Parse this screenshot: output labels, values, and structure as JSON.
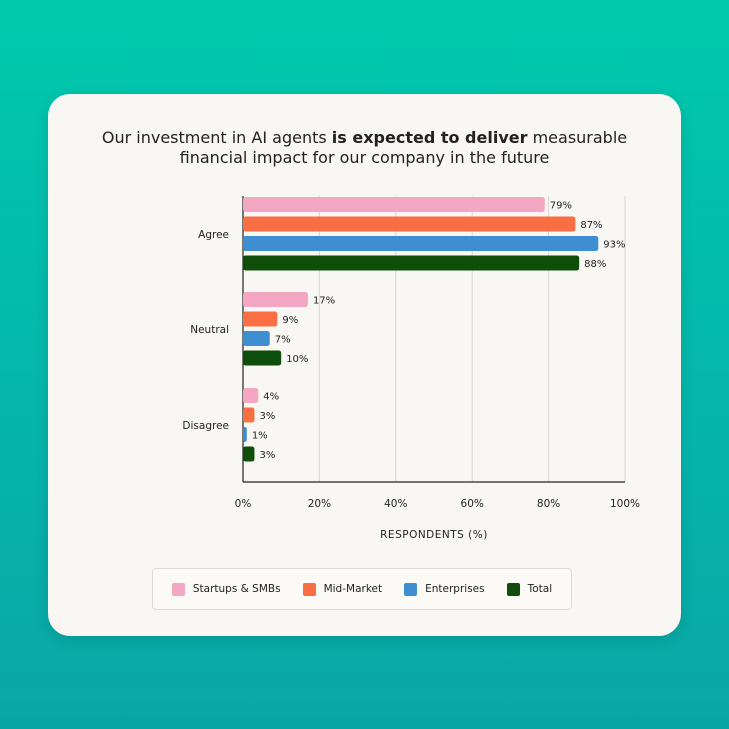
{
  "title": {
    "line1_before": "Our investment in AI agents ",
    "line1_bold": "is expected to deliver",
    "line1_after": " measurable",
    "line2": "financial impact for our company in the future"
  },
  "chart_data": {
    "type": "bar",
    "orientation": "horizontal",
    "categories": [
      "Agree",
      "Neutral",
      "Disagree"
    ],
    "series": [
      {
        "name": "Startups & SMBs",
        "color": "#f4a7c3",
        "values": [
          79,
          17,
          4
        ]
      },
      {
        "name": "Mid-Market",
        "color": "#fa6e43",
        "values": [
          87,
          9,
          3
        ]
      },
      {
        "name": "Enterprises",
        "color": "#3e8fd1",
        "values": [
          93,
          7,
          1
        ]
      },
      {
        "name": "Total",
        "color": "#0f4d0a",
        "values": [
          88,
          10,
          3
        ]
      }
    ],
    "xlabel": "RESPONDENTS (%)",
    "xlim": [
      0,
      100
    ],
    "xticks": [
      "0%",
      "20%",
      "40%",
      "60%",
      "80%",
      "100%"
    ],
    "value_suffix": "%",
    "grid": "vertical",
    "legend_position": "bottom"
  }
}
